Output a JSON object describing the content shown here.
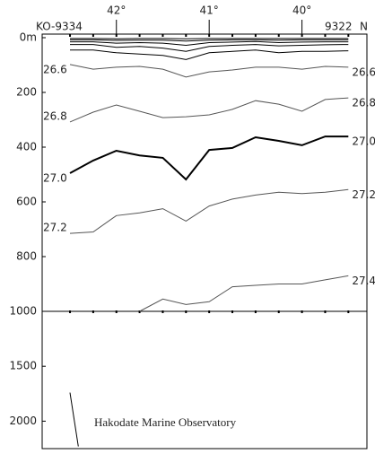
{
  "chart_data": [
    {
      "type": "line",
      "top_left_label": "KO-9334",
      "top_right_label": "9322",
      "direction_label": "N",
      "x": [
        42.5,
        42.25,
        42.0,
        41.75,
        41.5,
        41.25,
        41.0,
        40.75,
        40.5,
        40.25,
        40.0,
        39.75,
        39.5
      ],
      "xlim": [
        42.8,
        39.3
      ],
      "xticks": [
        {
          "value": 42,
          "label": "42°"
        },
        {
          "value": 41,
          "label": "41°"
        },
        {
          "value": 40,
          "label": "40°"
        }
      ],
      "ylim": [
        0,
        1000
      ],
      "yticks": [
        {
          "value": 0,
          "label": "0m"
        },
        200,
        400,
        600,
        800,
        1000
      ],
      "series": [
        {
          "color": "#000000",
          "values": [
            3,
            3,
            4,
            3,
            3,
            4,
            3,
            3,
            3,
            3,
            3,
            3,
            3
          ]
        },
        {
          "color": "#000000",
          "values": [
            8,
            8,
            10,
            9,
            9,
            12,
            9,
            8,
            8,
            9,
            8,
            8,
            8
          ]
        },
        {
          "color": "#000000",
          "values": [
            15,
            15,
            20,
            18,
            20,
            28,
            18,
            16,
            14,
            18,
            16,
            15,
            15
          ]
        },
        {
          "color": "#000000",
          "values": [
            25,
            25,
            35,
            32,
            38,
            50,
            32,
            28,
            25,
            30,
            28,
            26,
            25
          ]
        },
        {
          "color": "#000000",
          "values": [
            45,
            45,
            55,
            60,
            65,
            80,
            55,
            50,
            45,
            55,
            50,
            50,
            48
          ]
        },
        {
          "name": "26.6",
          "color": "#555555",
          "values": [
            98,
            115,
            108,
            105,
            115,
            144,
            125,
            118,
            108,
            108,
            115,
            105,
            108
          ]
        },
        {
          "name": "26.8",
          "color": "#555555",
          "values": [
            308,
            272,
            246,
            269,
            292,
            289,
            282,
            262,
            230,
            243,
            269,
            226,
            220
          ]
        },
        {
          "name": "27.0",
          "color": "#000000",
          "width": 2,
          "values": [
            495,
            449,
            413,
            430,
            439,
            518,
            410,
            403,
            364,
            377,
            393,
            361,
            361
          ]
        },
        {
          "name": "27.2",
          "color": "#555555",
          "values": [
            715,
            710,
            650,
            640,
            625,
            670,
            615,
            590,
            575,
            565,
            570,
            565,
            555
          ]
        },
        {
          "name": "27.4",
          "color": "#555555",
          "values": [
            null,
            null,
            null,
            1000,
            955,
            975,
            965,
            910,
            905,
            900,
            900,
            885,
            870
          ]
        }
      ]
    },
    {
      "type": "line",
      "annotation": "Hakodate Marine Observatory",
      "x": [
        42.5,
        42.41
      ],
      "xlim": [
        42.8,
        39.3
      ],
      "ylim": [
        1000,
        2250
      ],
      "yticks": [
        1500,
        2000
      ],
      "series": [
        {
          "color": "#000000",
          "values": [
            1740,
            2230
          ]
        }
      ]
    }
  ]
}
